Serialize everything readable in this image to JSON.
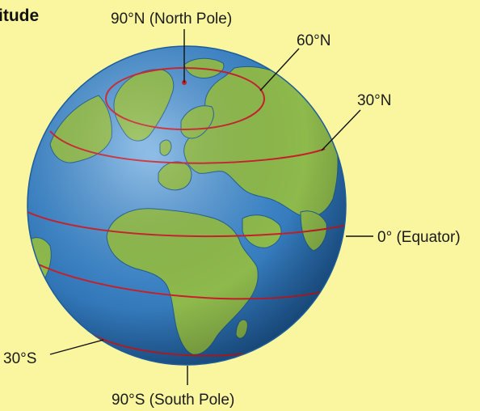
{
  "heading": {
    "title": "itude"
  },
  "labels": {
    "north_pole": "90°N (North Pole)",
    "lat_60n": "60°N",
    "lat_30n": "30°N",
    "equator": "0° (Equator)",
    "lat_30s": "30°S",
    "south_pole": "90°S (South Pole)"
  },
  "colors": {
    "background": "#FAF6A0",
    "ocean": "#3E86C8",
    "land": "#8EBA4C",
    "latitude_line": "#C8202B"
  }
}
